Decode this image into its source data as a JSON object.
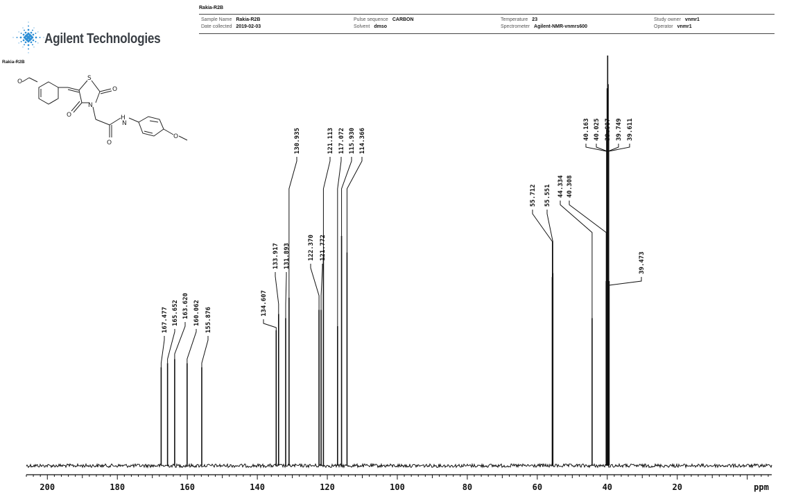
{
  "header": {
    "title": "Rakia-R2B",
    "fields": [
      {
        "label": "Sample Name",
        "value": "Rakia-R2B"
      },
      {
        "label": "Date collected",
        "value": "2019-02-03"
      },
      {
        "label": "Pulse sequence",
        "value": "CARBON"
      },
      {
        "label": "Solvent",
        "value": "dmso"
      },
      {
        "label": "Temperature",
        "value": "23"
      },
      {
        "label": "Spectrometer",
        "value": "Agilent-NMR-vnmrs600"
      },
      {
        "label": "Study owner",
        "value": "vnmr1"
      },
      {
        "label": "Operator",
        "value": "vnmr1"
      }
    ]
  },
  "logo": {
    "name": "Agilent Technologies",
    "sample_caption": "Rakia-R2B"
  },
  "chart_data": {
    "type": "line",
    "title": "",
    "xlabel": "ppm",
    "ylabel": "",
    "xlim": [
      206,
      -7
    ],
    "x_reversed": true,
    "xticks": [
      200,
      180,
      160,
      140,
      120,
      100,
      80,
      60,
      40,
      20
    ],
    "grid": false,
    "peaks": [
      {
        "ppm": 167.477,
        "label": "167.477",
        "intensity": 0.24
      },
      {
        "ppm": 165.652,
        "label": "165.652",
        "intensity": 0.25
      },
      {
        "ppm": 163.62,
        "label": "163.620",
        "intensity": 0.26
      },
      {
        "ppm": 160.062,
        "label": "160.062",
        "intensity": 0.25
      },
      {
        "ppm": 155.876,
        "label": "155.876",
        "intensity": 0.24
      },
      {
        "ppm": 134.607,
        "label": "134.607",
        "intensity": 0.33
      },
      {
        "ppm": 133.917,
        "label": "133.917",
        "intensity": 0.37
      },
      {
        "ppm": 131.893,
        "label": "131.893",
        "intensity": 0.36
      },
      {
        "ppm": 130.935,
        "label": "130.935",
        "intensity": 0.41
      },
      {
        "ppm": 122.37,
        "label": "122.370",
        "intensity": 0.38
      },
      {
        "ppm": 121.772,
        "label": "121.772",
        "intensity": 0.38
      },
      {
        "ppm": 121.113,
        "label": "121.113",
        "intensity": 0.51
      },
      {
        "ppm": 117.072,
        "label": "117.072",
        "intensity": 0.34
      },
      {
        "ppm": 115.93,
        "label": "115.930",
        "intensity": 0.56
      },
      {
        "ppm": 114.366,
        "label": "114.366",
        "intensity": 0.52
      },
      {
        "ppm": 55.712,
        "label": "55.712",
        "intensity": 0.46
      },
      {
        "ppm": 55.551,
        "label": "55.551",
        "intensity": 0.47
      },
      {
        "ppm": 44.334,
        "label": "44.334",
        "intensity": 0.36
      },
      {
        "ppm": 40.308,
        "label": "40.308",
        "intensity": 0.45
      },
      {
        "ppm": 40.163,
        "label": "40.163",
        "intensity": 0.82
      },
      {
        "ppm": 40.025,
        "label": "40.025",
        "intensity": 0.92
      },
      {
        "ppm": 39.887,
        "label": "39.887",
        "intensity": 1.0
      },
      {
        "ppm": 39.749,
        "label": "39.749",
        "intensity": 0.93
      },
      {
        "ppm": 39.611,
        "label": "39.611",
        "intensity": 0.82
      },
      {
        "ppm": 39.473,
        "label": "39.473",
        "intensity": 0.45
      }
    ]
  }
}
